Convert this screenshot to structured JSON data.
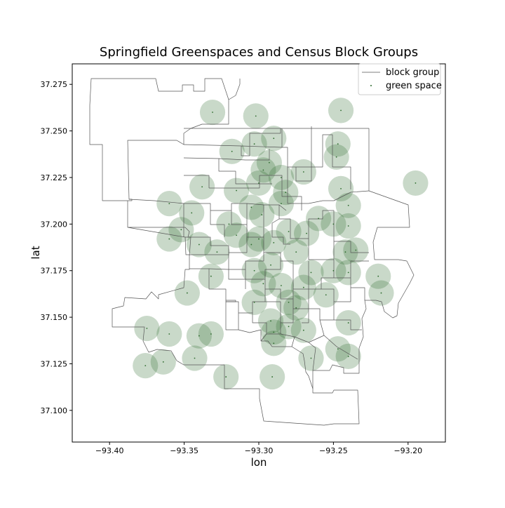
{
  "chart_data": {
    "type": "scatter",
    "title": "Springfield Greenspaces and Census Block Groups",
    "xlabel": "lon",
    "ylabel": "lat",
    "xlim": [
      -93.425,
      -93.175
    ],
    "ylim": [
      37.083,
      37.286
    ],
    "x_ticks": [
      -93.4,
      -93.35,
      -93.3,
      -93.25,
      -93.2
    ],
    "x_tick_labels": [
      "−93.40",
      "−93.35",
      "−93.30",
      "−93.25",
      "−93.20"
    ],
    "y_ticks": [
      37.1,
      37.125,
      37.15,
      37.175,
      37.2,
      37.225,
      37.25,
      37.275
    ],
    "y_tick_labels": [
      "37.100",
      "37.125",
      "37.150",
      "37.175",
      "37.200",
      "37.225",
      "37.250",
      "37.275"
    ],
    "grid": false,
    "legend_position": "top-right",
    "colors": {
      "block_group_line": "#555555",
      "buffer_fill": "#2e6b2e",
      "point": "#2e6b2e"
    },
    "series": [
      {
        "name": "block group",
        "kind": "line"
      },
      {
        "name": "green space",
        "kind": "point",
        "buffer_radius_deg": 0.0085,
        "points": [
          [
            -93.331,
            37.26
          ],
          [
            -93.302,
            37.258
          ],
          [
            -93.245,
            37.261
          ],
          [
            -93.29,
            37.246
          ],
          [
            -93.303,
            37.243
          ],
          [
            -93.247,
            37.243
          ],
          [
            -93.318,
            37.239
          ],
          [
            -93.248,
            37.236
          ],
          [
            -93.293,
            37.233
          ],
          [
            -93.297,
            37.229
          ],
          [
            -93.27,
            37.228
          ],
          [
            -93.285,
            37.225
          ],
          [
            -93.3,
            37.222
          ],
          [
            -93.338,
            37.22
          ],
          [
            -93.315,
            37.218
          ],
          [
            -93.282,
            37.217
          ],
          [
            -93.245,
            37.219
          ],
          [
            -93.195,
            37.222
          ],
          [
            -93.36,
            37.211
          ],
          [
            -93.285,
            37.211
          ],
          [
            -93.24,
            37.21
          ],
          [
            -93.305,
            37.209
          ],
          [
            -93.345,
            37.206
          ],
          [
            -93.32,
            37.2
          ],
          [
            -93.298,
            37.205
          ],
          [
            -93.26,
            37.203
          ],
          [
            -93.25,
            37.2
          ],
          [
            -93.24,
            37.199
          ],
          [
            -93.352,
            37.197
          ],
          [
            -93.28,
            37.196
          ],
          [
            -93.268,
            37.195
          ],
          [
            -93.315,
            37.194
          ],
          [
            -93.3,
            37.192
          ],
          [
            -93.29,
            37.19
          ],
          [
            -93.34,
            37.189
          ],
          [
            -93.36,
            37.192
          ],
          [
            -93.328,
            37.185
          ],
          [
            -93.305,
            37.189
          ],
          [
            -93.275,
            37.185
          ],
          [
            -93.242,
            37.185
          ],
          [
            -93.235,
            37.186
          ],
          [
            -93.292,
            37.178
          ],
          [
            -93.332,
            37.172
          ],
          [
            -93.303,
            37.175
          ],
          [
            -93.265,
            37.174
          ],
          [
            -93.25,
            37.175
          ],
          [
            -93.24,
            37.174
          ],
          [
            -93.22,
            37.172
          ],
          [
            -93.297,
            37.168
          ],
          [
            -93.285,
            37.167
          ],
          [
            -93.27,
            37.166
          ],
          [
            -93.255,
            37.162
          ],
          [
            -93.218,
            37.163
          ],
          [
            -93.348,
            37.163
          ],
          [
            -93.303,
            37.158
          ],
          [
            -93.28,
            37.158
          ],
          [
            -93.275,
            37.155
          ],
          [
            -93.292,
            37.148
          ],
          [
            -93.29,
            37.142
          ],
          [
            -93.28,
            37.145
          ],
          [
            -93.27,
            37.143
          ],
          [
            -93.24,
            37.147
          ],
          [
            -93.375,
            37.144
          ],
          [
            -93.36,
            37.141
          ],
          [
            -93.34,
            37.14
          ],
          [
            -93.332,
            37.141
          ],
          [
            -93.29,
            37.136
          ],
          [
            -93.247,
            37.133
          ],
          [
            -93.265,
            37.128
          ],
          [
            -93.24,
            37.129
          ],
          [
            -93.343,
            37.128
          ],
          [
            -93.364,
            37.126
          ],
          [
            -93.376,
            37.124
          ],
          [
            -93.322,
            37.118
          ],
          [
            -93.291,
            37.118
          ]
        ]
      }
    ]
  }
}
